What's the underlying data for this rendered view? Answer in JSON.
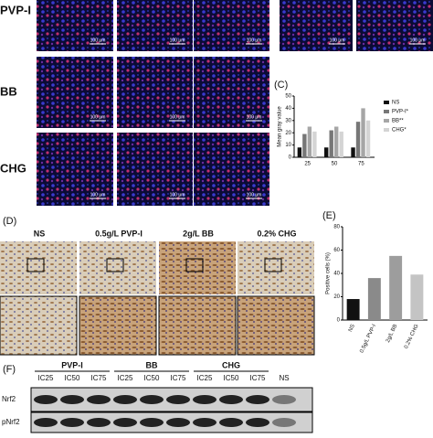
{
  "chart_data": [
    {
      "type": "bar",
      "panel": "(C)",
      "ylabel": "Mean gray value",
      "categories": [
        "25",
        "50",
        "75"
      ],
      "series": [
        {
          "name": "NS",
          "color": "#111111",
          "values": [
            8,
            8,
            8
          ]
        },
        {
          "name": "PVP-I*",
          "color": "#777777",
          "values": [
            19,
            22,
            29
          ]
        },
        {
          "name": "BB**",
          "color": "#a6a6a6",
          "values": [
            25,
            25,
            40
          ]
        },
        {
          "name": "CHG*",
          "color": "#d4d4d4",
          "values": [
            21,
            21,
            30
          ]
        }
      ],
      "ylim": [
        0,
        50
      ],
      "yticks": [
        0,
        10,
        20,
        30,
        40,
        50
      ]
    },
    {
      "type": "bar",
      "panel": "(E)",
      "ylabel": "Positive cells (%)",
      "categories": [
        "NS",
        "0.5g/L PVP-I",
        "2g/L BB",
        "0.2% CHG"
      ],
      "values": [
        18,
        36,
        55,
        39
      ],
      "colors": [
        "#111111",
        "#8a8a8a",
        "#9d9d9d",
        "#c4c4c4"
      ],
      "ylim": [
        0,
        80
      ],
      "yticks": [
        0,
        20,
        40,
        60,
        80
      ]
    }
  ],
  "figure": {
    "rows": [
      "PVP-I",
      "BB",
      "CHG"
    ],
    "scale_bar": "100 μm",
    "panel_d": {
      "label": "(D)",
      "columns": [
        "NS",
        "0.5g/L PVP-I",
        "2g/L BB",
        "0.2% CHG"
      ]
    },
    "panel_f": {
      "label": "(F)",
      "groups": [
        "PVP-I",
        "BB",
        "CHG"
      ],
      "lanes": [
        "IC25",
        "IC50",
        "IC75",
        "IC25",
        "IC50",
        "IC75",
        "IC25",
        "IC50",
        "IC75",
        "NS"
      ],
      "proteins": [
        "Nrf2",
        "pNrf2"
      ]
    }
  }
}
